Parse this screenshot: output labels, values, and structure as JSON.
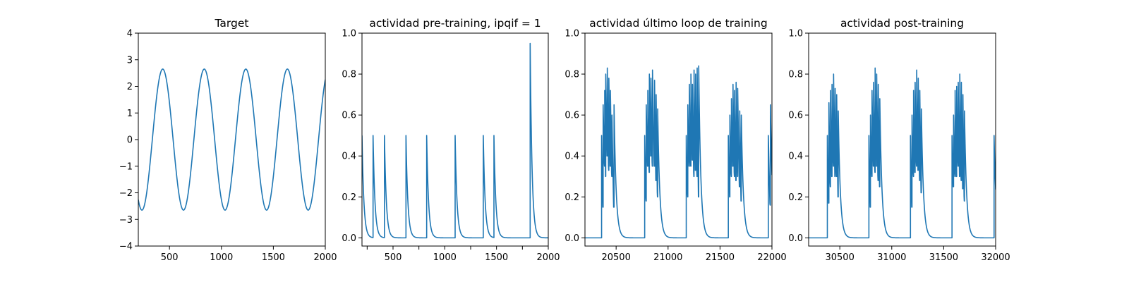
{
  "chart_data": [
    {
      "type": "line",
      "title": "Target",
      "xlabel": "",
      "ylabel": "",
      "xlim": [
        200,
        2000
      ],
      "ylim": [
        -4,
        4
      ],
      "xticks": [
        500,
        1000,
        1500,
        2000
      ],
      "yticks": [
        -4,
        -3,
        -2,
        -1,
        0,
        1,
        2,
        3,
        4
      ],
      "ytick_labels": [
        "−4",
        "−3",
        "−2",
        "−1",
        "0",
        "1",
        "2",
        "3",
        "4"
      ],
      "color": "#1f77b4",
      "series": [
        {
          "kind": "sine",
          "amplitude": 2.65,
          "period": 400,
          "peak_at": 435,
          "x_start": 200,
          "x_end": 2000
        }
      ]
    },
    {
      "type": "line",
      "title": "actividad pre-training, ipqif = 1",
      "xlabel": "",
      "ylabel": "",
      "xlim": [
        200,
        2000
      ],
      "ylim": [
        -0.04,
        1.0
      ],
      "xticks": [
        250,
        500,
        750,
        1000,
        1250,
        1500,
        1750,
        2000
      ],
      "xtick_labels": [
        "",
        "500",
        "",
        "1000",
        "",
        "1500",
        "",
        "2000"
      ],
      "yticks": [
        0.0,
        0.2,
        0.4,
        0.6,
        0.8,
        1.0
      ],
      "ytick_labels": [
        "0.0",
        "0.2",
        "0.4",
        "0.6",
        "0.8",
        "1.0"
      ],
      "color": "#1f77b4",
      "series": [
        {
          "kind": "spike_train",
          "baseline": 0,
          "decay": 18,
          "x_start": 200,
          "x_end": 2000,
          "initial": 0.5,
          "spikes": [
            {
              "t": 307,
              "v": 0.5
            },
            {
              "t": 417,
              "v": 0.5
            },
            {
              "t": 625,
              "v": 0.5
            },
            {
              "t": 825,
              "v": 0.5
            },
            {
              "t": 1100,
              "v": 0.5
            },
            {
              "t": 1372,
              "v": 0.5
            },
            {
              "t": 1475,
              "v": 0.5
            },
            {
              "t": 1825,
              "v": 0.95
            }
          ]
        }
      ]
    },
    {
      "type": "line",
      "title": "actividad último loop de training",
      "xlabel": "",
      "ylabel": "",
      "xlim": [
        20200,
        22000
      ],
      "ylim": [
        -0.04,
        1.0
      ],
      "xticks": [
        20500,
        21000,
        21500,
        22000
      ],
      "yticks": [
        0.0,
        0.2,
        0.4,
        0.6,
        0.8,
        1.0
      ],
      "ytick_labels": [
        "0.0",
        "0.2",
        "0.4",
        "0.6",
        "0.8",
        "1.0"
      ],
      "color": "#1f77b4",
      "series": [
        {
          "kind": "bursts",
          "baseline": 0,
          "decay": 20,
          "x_start": 20200,
          "x_end": 22000,
          "bursts": [
            {
              "t": [
                20360,
                20375,
                20390,
                20400,
                20415,
                20430,
                20445,
                20460,
                20480
              ],
              "peaks": [
                0.5,
                0.65,
                0.72,
                0.8,
                0.83,
                0.78,
                0.72,
                0.6,
                0.65
              ],
              "troughs": [
                0.15,
                0.35,
                0.3,
                0.4,
                0.33,
                0.35,
                0.3,
                0.15
              ]
            },
            {
              "t": [
                20775,
                20790,
                20805,
                20820,
                20835,
                20850,
                20870,
                20885,
                20900
              ],
              "peaks": [
                0.5,
                0.65,
                0.72,
                0.8,
                0.78,
                0.82,
                0.77,
                0.7,
                0.63
              ],
              "troughs": [
                0.18,
                0.35,
                0.32,
                0.4,
                0.35,
                0.35,
                0.28,
                0.2
              ]
            },
            {
              "t": [
                21175,
                21190,
                21205,
                21220,
                21235,
                21250,
                21265,
                21280,
                21295
              ],
              "peaks": [
                0.5,
                0.65,
                0.75,
                0.8,
                0.75,
                0.82,
                0.8,
                0.83,
                0.84
              ],
              "troughs": [
                0.2,
                0.35,
                0.35,
                0.38,
                0.3,
                0.33,
                0.3,
                0.2
              ]
            },
            {
              "t": [
                21580,
                21595,
                21610,
                21625,
                21640,
                21655,
                21670,
                21690,
                21705
              ],
              "peaks": [
                0.5,
                0.6,
                0.68,
                0.75,
                0.72,
                0.76,
                0.73,
                0.62,
                0.6
              ],
              "troughs": [
                0.2,
                0.3,
                0.35,
                0.3,
                0.28,
                0.3,
                0.25,
                0.18
              ]
            },
            {
              "t": [
                21965,
                21985
              ],
              "peaks": [
                0.5,
                0.65
              ],
              "troughs": [
                0.16
              ]
            }
          ]
        }
      ]
    },
    {
      "type": "line",
      "title": "actividad post-training",
      "xlabel": "",
      "ylabel": "",
      "xlim": [
        30200,
        32000
      ],
      "ylim": [
        -0.04,
        1.0
      ],
      "xticks": [
        30500,
        31000,
        31500,
        32000
      ],
      "yticks": [
        0.0,
        0.2,
        0.4,
        0.6,
        0.8,
        1.0
      ],
      "ytick_labels": [
        "0.0",
        "0.2",
        "0.4",
        "0.6",
        "0.8",
        "1.0"
      ],
      "color": "#1f77b4",
      "series": [
        {
          "kind": "bursts",
          "baseline": 0,
          "decay": 20,
          "x_start": 30200,
          "x_end": 32000,
          "bursts": [
            {
              "t": [
                30380,
                30395,
                30410,
                30425,
                30440,
                30455,
                30470,
                30485
              ],
              "peaks": [
                0.5,
                0.66,
                0.72,
                0.75,
                0.8,
                0.73,
                0.7,
                0.62
              ],
              "troughs": [
                0.17,
                0.25,
                0.3,
                0.35,
                0.3,
                0.3,
                0.2
              ]
            },
            {
              "t": [
                30780,
                30795,
                30810,
                30825,
                30840,
                30855,
                30870,
                30885
              ],
              "peaks": [
                0.5,
                0.6,
                0.72,
                0.76,
                0.83,
                0.8,
                0.75,
                0.68
              ],
              "troughs": [
                0.15,
                0.3,
                0.35,
                0.32,
                0.35,
                0.28,
                0.25
              ]
            },
            {
              "t": [
                31180,
                31195,
                31210,
                31225,
                31240,
                31255,
                31270,
                31285
              ],
              "peaks": [
                0.5,
                0.6,
                0.72,
                0.76,
                0.82,
                0.78,
                0.72,
                0.63
              ],
              "troughs": [
                0.15,
                0.3,
                0.32,
                0.35,
                0.33,
                0.28,
                0.22
              ]
            },
            {
              "t": [
                31580,
                31595,
                31610,
                31625,
                31640,
                31655,
                31670,
                31685,
                31700
              ],
              "peaks": [
                0.5,
                0.6,
                0.72,
                0.74,
                0.76,
                0.8,
                0.76,
                0.7,
                0.62
              ],
              "troughs": [
                0.25,
                0.3,
                0.3,
                0.35,
                0.3,
                0.28,
                0.24,
                0.18
              ]
            },
            {
              "t": [
                31985
              ],
              "peaks": [
                0.5
              ],
              "troughs": []
            }
          ]
        }
      ]
    }
  ]
}
